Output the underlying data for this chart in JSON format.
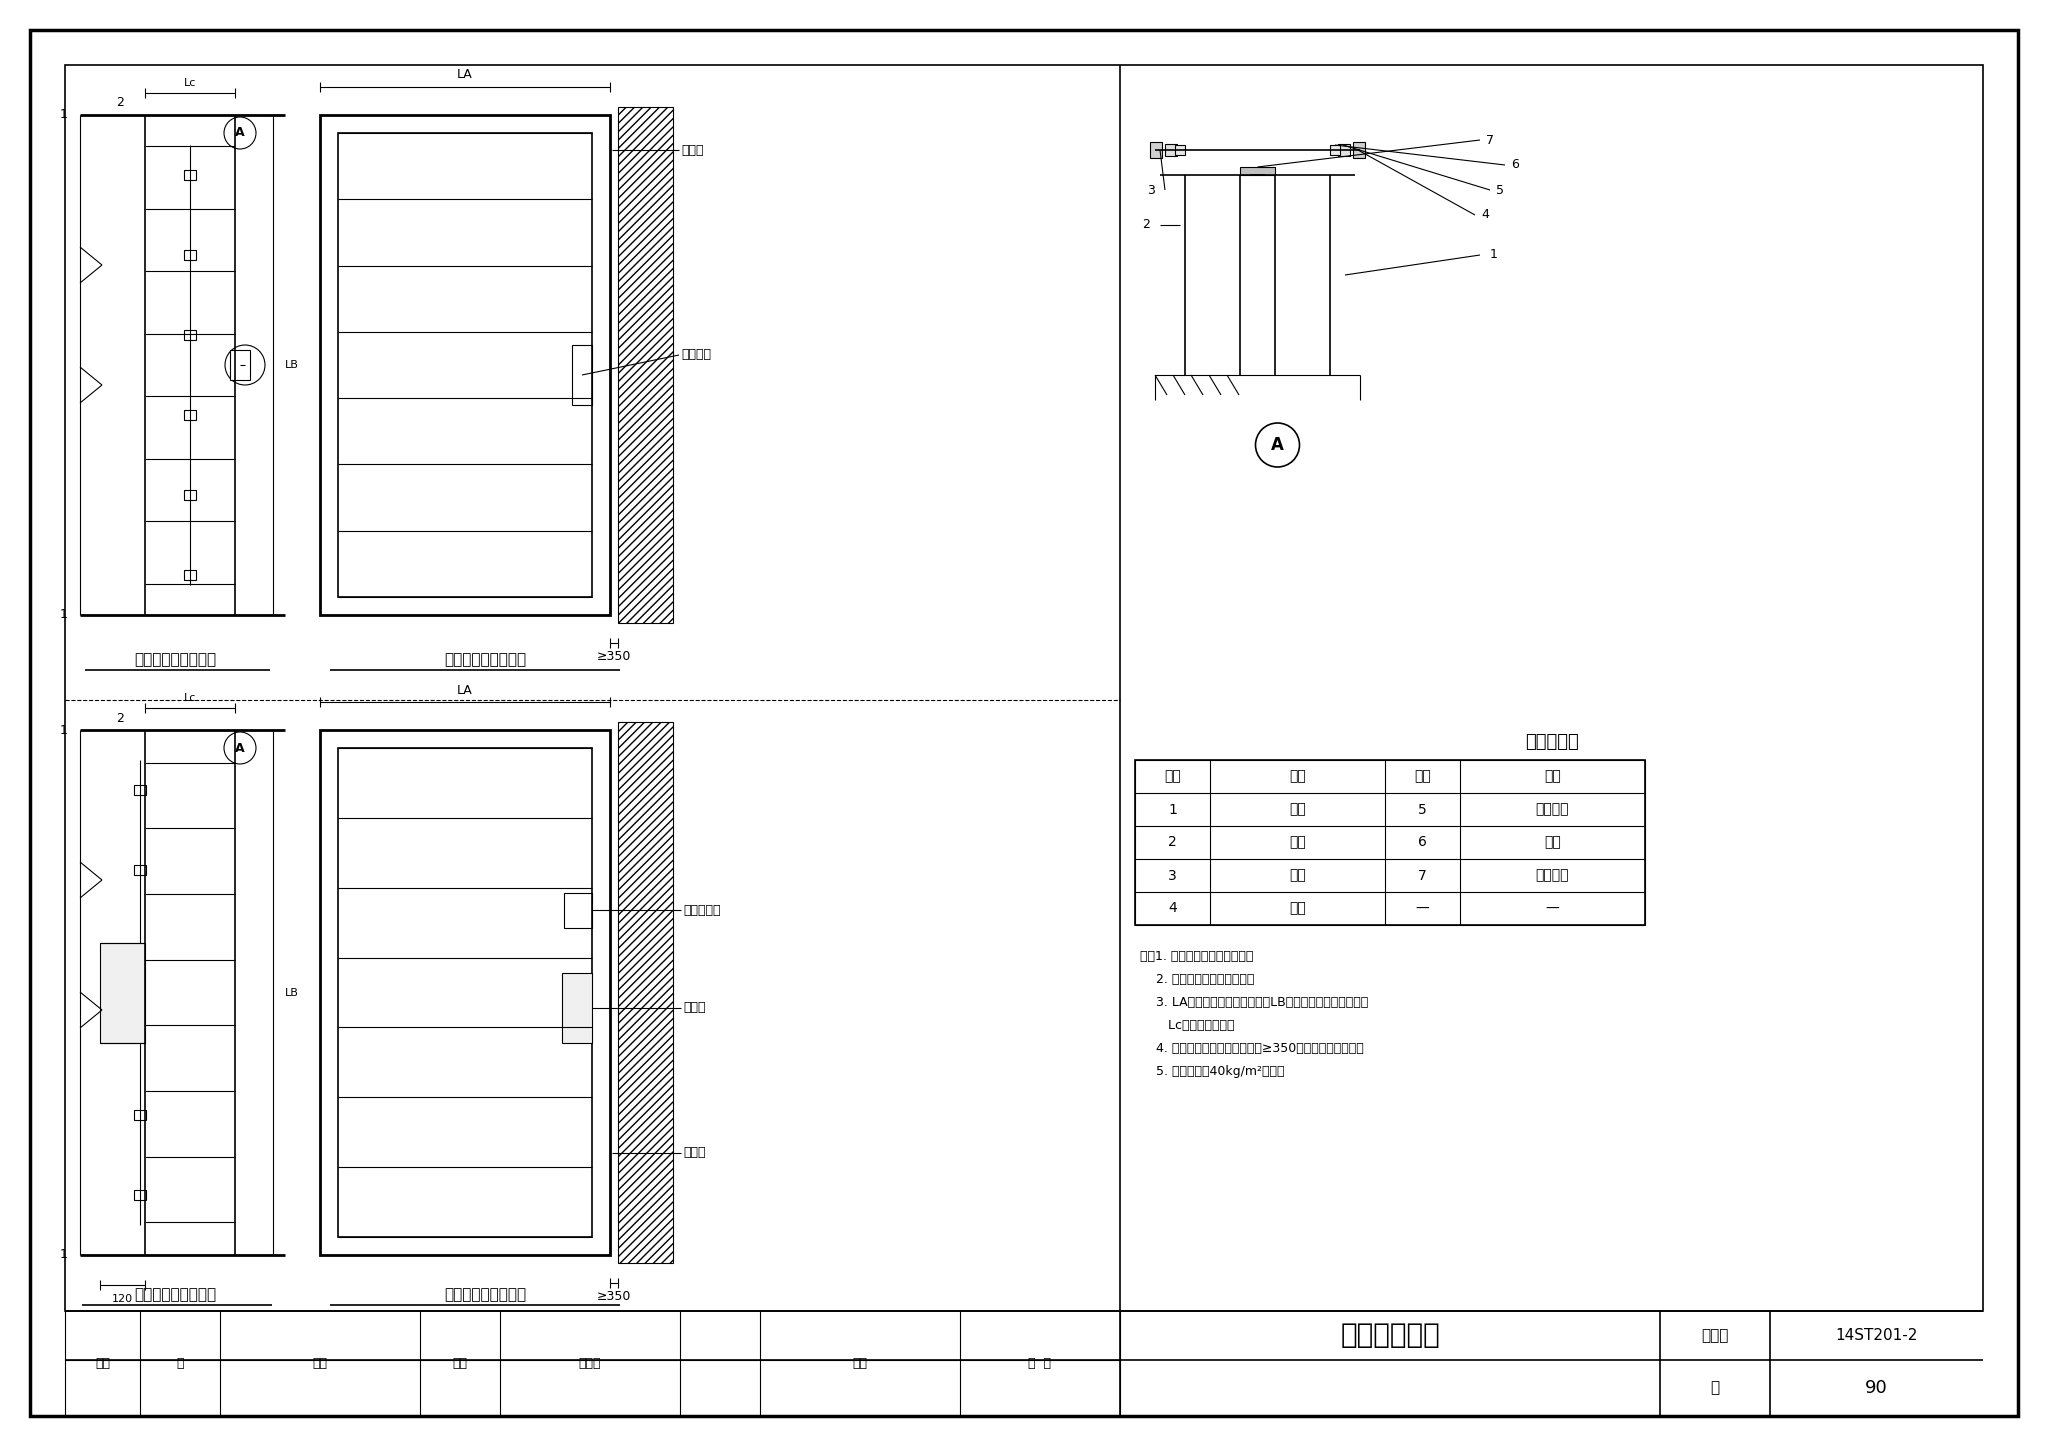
{
  "title": "单体风阀安装",
  "atlas_no": "14ST201-2",
  "page": "90",
  "bg_color": "#ffffff",
  "top_left_label": "手动风阀安装左视图",
  "top_right_label": "手动风阀安装立面图",
  "bot_left_label": "电动风阀安装左视图",
  "bot_right_label": "电动风阀安装立面图",
  "table_title": "名称对照表",
  "table_headers": [
    "编号",
    "名称",
    "编号",
    "名称"
  ],
  "table_rows": [
    [
      "1",
      "风管",
      "5",
      "弹簧垫片"
    ],
    [
      "2",
      "风阀",
      "6",
      "平垫"
    ],
    [
      "3",
      "螺栓",
      "7",
      "密封材料"
    ],
    [
      "4",
      "螺母",
      "—",
      "—"
    ]
  ],
  "notes_lines": [
    "注：1. 本图为单体风阀安装图。",
    "    2. 驱动方式为手动或电动。",
    "    3. LA表示阀体叶片长度方向；LB表示阀体叶片垂直方向；",
    "       Lc表示阀体厚度。",
    "    4. 执行机构安装侧，阀体距墙≥350，以便操作和维护。",
    "    5. 阀门重量按40kg/m²计算。"
  ]
}
